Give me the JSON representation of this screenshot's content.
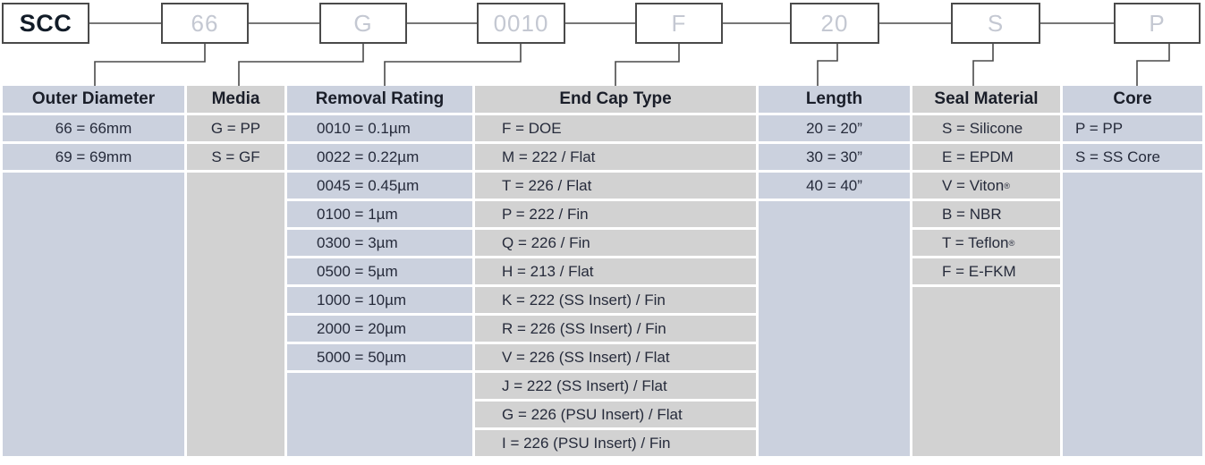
{
  "part_code": {
    "segments": [
      {
        "code": "SCC"
      },
      {
        "code": "66"
      },
      {
        "code": "G"
      },
      {
        "code": "0010"
      },
      {
        "code": "F"
      },
      {
        "code": "20"
      },
      {
        "code": "S"
      },
      {
        "code": "P"
      }
    ]
  },
  "table": {
    "columns": [
      {
        "header": "Outer Diameter",
        "theme": "blue",
        "align": "center",
        "options": [
          "66 = 66mm",
          "69 = 69mm"
        ]
      },
      {
        "header": "Media",
        "theme": "gray",
        "align": "center",
        "options": [
          "G = PP",
          "S = GF"
        ]
      },
      {
        "header": "Removal Rating",
        "theme": "blue",
        "align": "left",
        "options": [
          "0010 = 0.1µm",
          "0022 = 0.22µm",
          "0045 = 0.45µm",
          "0100 = 1µm",
          "0300 = 3µm",
          "0500 = 5µm",
          "1000 = 10µm",
          "2000 = 20µm",
          "5000 = 50µm"
        ]
      },
      {
        "header": "End Cap Type",
        "theme": "gray",
        "align": "left",
        "options": [
          "F = DOE",
          "M = 222 / Flat",
          "T = 226 / Flat",
          "P = 222 / Fin",
          "Q = 226 / Fin",
          "H = 213 / Flat",
          "K = 222 (SS Insert) / Fin",
          "R = 226 (SS Insert) / Fin",
          "V = 226 (SS Insert) / Flat",
          "J = 222 (SS Insert) / Flat",
          "G = 226 (PSU Insert) / Flat",
          "I = 226 (PSU Insert) / Fin"
        ]
      },
      {
        "header": "Length",
        "theme": "blue",
        "align": "center",
        "options": [
          "20 = 20”",
          "30 = 30”",
          "40 = 40”"
        ]
      },
      {
        "header": "Seal Material",
        "theme": "gray",
        "align": "left",
        "options": [
          "S = Silicone",
          "E = EPDM",
          "V = Viton®",
          "B = NBR",
          "T = Teflon®",
          "F = E-FKM"
        ]
      },
      {
        "header": "Core",
        "theme": "blue",
        "align": "left",
        "options": [
          "P = PP",
          "S = SS Core"
        ]
      }
    ],
    "data_rows": 12
  },
  "colors": {
    "column_blue": "#cbd1de",
    "column_gray": "#d2d2d2",
    "line": "#4a4a4a",
    "code_muted_text": "#c4c8d2",
    "code_primary_text": "#121c28",
    "cell_text": "#262b3b"
  }
}
